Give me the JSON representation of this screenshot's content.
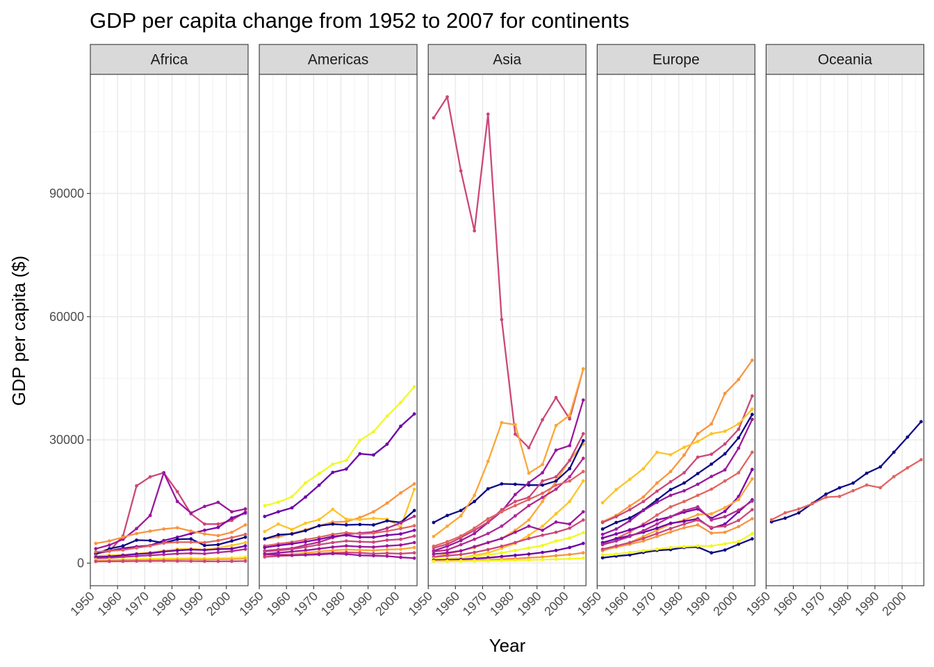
{
  "chart_data": {
    "type": "line",
    "title": "GDP per capita change from 1952 to 2007 for continents",
    "xlabel": "Year",
    "ylabel": "GDP per capita ($)",
    "x_ticks": [
      1950,
      1960,
      1970,
      1980,
      1990,
      2000
    ],
    "y_ticks": [
      0,
      30000,
      60000,
      90000
    ],
    "xlim": [
      1950,
      2008
    ],
    "ylim": [
      -5500,
      119000
    ],
    "grid": true,
    "legend": "none",
    "years": [
      1952,
      1957,
      1962,
      1967,
      1972,
      1977,
      1982,
      1987,
      1992,
      1997,
      2002,
      2007
    ],
    "facets": [
      {
        "name": "Africa",
        "series": [
          {
            "color": "#cc4778",
            "values": [
              2300,
              2900,
              6600,
              18800,
              21000,
              22000,
              17400,
              12000,
              9500,
              9500,
              10400,
              12500
            ]
          },
          {
            "color": "#9c179e",
            "values": [
              3500,
              4400,
              5800,
              8400,
              11600,
              22000,
              15000,
              12200,
              13800,
              14800,
              12500,
              13200
            ]
          },
          {
            "color": "#7e03a8",
            "values": [
              2400,
              3000,
              3600,
              4000,
              4300,
              5500,
              6300,
              7200,
              8000,
              8700,
              11000,
              12200
            ]
          },
          {
            "color": "#0d0887",
            "values": [
              2200,
              3500,
              4200,
              5600,
              5500,
              4900,
              5800,
              5900,
              4300,
              4500,
              5400,
              6300
            ]
          },
          {
            "color": "#f89540",
            "values": [
              4800,
              5400,
              6300,
              7200,
              7800,
              8300,
              8600,
              7800,
              7100,
              6700,
              7500,
              9300
            ]
          },
          {
            "color": "#e16462",
            "values": [
              2700,
              3000,
              3200,
              3700,
              4200,
              4900,
              5100,
              5100,
              5000,
              5500,
              6200,
              7000
            ]
          },
          {
            "color": "#fdc328",
            "values": [
              1700,
              1900,
              2000,
              2300,
              2600,
              3000,
              3400,
              3500,
              3300,
              3700,
              4300,
              5000
            ]
          },
          {
            "color": "#6a00a8",
            "values": [
              1500,
              1600,
              1900,
              2200,
              2400,
              2800,
              3100,
              3300,
              3200,
              3400,
              3500,
              4200
            ]
          },
          {
            "color": "#b12a90",
            "values": [
              1200,
              1300,
              1500,
              1700,
              1900,
              2100,
              2300,
              2400,
              2300,
              2600,
              2900,
              3400
            ]
          },
          {
            "color": "#f0f921",
            "values": [
              800,
              850,
              900,
              1000,
              1100,
              1150,
              1200,
              1250,
              1150,
              1200,
              1300,
              1500
            ]
          },
          {
            "color": "#fca636",
            "values": [
              600,
              650,
              700,
              750,
              800,
              850,
              900,
              950,
              900,
              950,
              1000,
              1100
            ]
          },
          {
            "color": "#cc4778",
            "values": [
              400,
              420,
              450,
              480,
              500,
              520,
              500,
              480,
              450,
              430,
              460,
              500
            ]
          }
        ]
      },
      {
        "name": "Americas",
        "series": [
          {
            "color": "#f0f921",
            "values": [
              13990,
              14850,
              16170,
              19530,
              21810,
              24070,
              25010,
              29880,
              32000,
              35770,
              39100,
              42950
            ]
          },
          {
            "color": "#6a00a8",
            "values": [
              11370,
              12490,
              13460,
              16080,
              18970,
              22090,
              22900,
              26630,
              26340,
              28950,
              33330,
              36320
            ]
          },
          {
            "color": "#f89540",
            "values": [
              5900,
              6400,
              7200,
              8100,
              9100,
              10000,
              10100,
              11100,
              12500,
              14600,
              17100,
              19300
            ]
          },
          {
            "color": "#fdc328",
            "values": [
              7700,
              9500,
              8200,
              9700,
              10600,
              13100,
              10700,
              10600,
              10900,
              10700,
              8800,
              18000
            ]
          },
          {
            "color": "#0d0887",
            "values": [
              5900,
              6900,
              7100,
              7900,
              9100,
              9500,
              9300,
              9400,
              9300,
              10300,
              9900,
              12800
            ]
          },
          {
            "color": "#b12a90",
            "values": [
              3000,
              3300,
              3600,
              4400,
              5100,
              6200,
              7000,
              7300,
              7600,
              8500,
              9800,
              11400
            ]
          },
          {
            "color": "#e16462",
            "values": [
              4200,
              4700,
              5100,
              5700,
              6300,
              7000,
              7400,
              7100,
              7300,
              7800,
              8400,
              9100
            ]
          },
          {
            "color": "#7e03a8",
            "values": [
              3800,
              4300,
              4700,
              5200,
              5800,
              6500,
              6800,
              6300,
              6300,
              6800,
              7100,
              8000
            ]
          },
          {
            "color": "#cc4778",
            "values": [
              2800,
              3100,
              3400,
              3900,
              4500,
              5000,
              5400,
              5200,
              5100,
              5600,
              5800,
              6600
            ]
          },
          {
            "color": "#9c179e",
            "values": [
              2200,
              2500,
              2800,
              3100,
              3500,
              3900,
              4200,
              4000,
              3900,
              4200,
              4400,
              5000
            ]
          },
          {
            "color": "#fca636",
            "values": [
              1800,
              2000,
              2200,
              2500,
              2800,
              3100,
              3300,
              3200,
              3100,
              3300,
              3400,
              3800
            ]
          },
          {
            "color": "#cc4778",
            "values": [
              1500,
              1700,
              1900,
              2100,
              2300,
              2500,
              2600,
              2500,
              2300,
              2400,
              2300,
              2500
            ]
          },
          {
            "color": "#9c179e",
            "values": [
              2200,
              2000,
              1900,
              2000,
              2100,
              2300,
              2200,
              1900,
              1800,
              1700,
              1400,
              1200
            ]
          }
        ]
      },
      {
        "name": "Asia",
        "series": [
          {
            "color": "#cc4778",
            "values": [
              108400,
              113500,
              95500,
              80900,
              109300,
              59300,
              31400,
              28100,
              34900,
              40300,
              35100,
              47300
            ]
          },
          {
            "color": "#fca636",
            "values": [
              1500,
              2200,
              3000,
              3800,
              5000,
              6000,
              8000,
              10500,
              15000,
              20000,
              25000,
              29000
            ]
          },
          {
            "color": "#0d0887",
            "values": [
              9900,
              11600,
              12800,
              15000,
              18100,
              19300,
              19200,
              19000,
              19000,
              20000,
              23000,
              29800
            ]
          },
          {
            "color": "#fca636",
            "values": [
              6500,
              9000,
              11500,
              16500,
              24800,
              34200,
              33700,
              21900,
              24000,
              33500,
              36000,
              47300
            ]
          },
          {
            "color": "#9c179e",
            "values": [
              3000,
              4100,
              5500,
              7200,
              9900,
              12600,
              16700,
              19600,
              22000,
              27500,
              28600,
              39700
            ]
          },
          {
            "color": "#cc4778",
            "values": [
              3700,
              4600,
              6200,
              8000,
              10000,
              13000,
              15000,
              16000,
              20000,
              21000,
              25000,
              31500
            ]
          },
          {
            "color": "#b12a90",
            "values": [
              2800,
              3200,
              4500,
              5800,
              7200,
              9000,
              11500,
              14000,
              16000,
              18000,
              21000,
              25500
            ]
          },
          {
            "color": "#e16462",
            "values": [
              4100,
              5200,
              6600,
              8500,
              10800,
              12500,
              14000,
              15500,
              17000,
              19000,
              20000,
              22300
            ]
          },
          {
            "color": "#fdc328",
            "values": [
              600,
              800,
              1200,
              1900,
              2500,
              3600,
              4800,
              6800,
              9000,
              12000,
              15000,
              20000
            ]
          },
          {
            "color": "#9c179e",
            "values": [
              2200,
              2500,
              3000,
              4000,
              5000,
              6000,
              7500,
              9000,
              8000,
              10000,
              9500,
              12500
            ]
          },
          {
            "color": "#cc4778",
            "values": [
              1500,
              1800,
              2100,
              2600,
              3300,
              4100,
              5000,
              6000,
              6800,
              7500,
              8500,
              10500
            ]
          },
          {
            "color": "#f0f921",
            "values": [
              1000,
              1100,
              1300,
              1600,
              2000,
              2500,
              3100,
              3700,
              4300,
              5400,
              6100,
              7400
            ]
          },
          {
            "color": "#6a00a8",
            "values": [
              700,
              800,
              900,
              1100,
              1300,
              1600,
              1900,
              2200,
              2600,
              3100,
              3800,
              4800
            ]
          },
          {
            "color": "#f89540",
            "values": [
              500,
              550,
              600,
              700,
              800,
              950,
              1100,
              1300,
              1500,
              1800,
              2100,
              2500
            ]
          },
          {
            "color": "#f0f921",
            "values": [
              400,
              420,
              450,
              500,
              560,
              620,
              700,
              780,
              860,
              950,
              1050,
              1200
            ]
          }
        ]
      },
      {
        "name": "Europe",
        "series": [
          {
            "color": "#f89540",
            "values": [
              10100,
              11600,
              13900,
              16100,
              19500,
              22300,
              26300,
              31500,
              33900,
              41300,
              44700,
              49400
            ]
          },
          {
            "color": "#cc4778",
            "values": [
              9900,
              11300,
              13000,
              15000,
              17500,
              19800,
              22000,
              25800,
              26500,
              29000,
              32600,
              40700
            ]
          },
          {
            "color": "#fdc328",
            "values": [
              14700,
              17900,
              20400,
              23000,
              27000,
              26400,
              28200,
              29600,
              31500,
              32100,
              33900,
              37500
            ]
          },
          {
            "color": "#0d0887",
            "values": [
              8300,
              9900,
              11000,
              12900,
              15400,
              17900,
              19500,
              21800,
              24100,
              26600,
              30500,
              36200
            ]
          },
          {
            "color": "#9c179e",
            "values": [
              7000,
              8300,
              10300,
              12800,
              14800,
              16500,
              17600,
              19200,
              21100,
              22700,
              28000,
              35000
            ]
          },
          {
            "color": "#e16462",
            "values": [
              4800,
              6000,
              7600,
              9500,
              11700,
              13700,
              15000,
              16500,
              18000,
              20000,
              22000,
              27000
            ]
          },
          {
            "color": "#7e03a8",
            "values": [
              6100,
              7100,
              8100,
              9100,
              10500,
              11300,
              12400,
              13200,
              10900,
              12600,
              16200,
              22800
            ]
          },
          {
            "color": "#fca636",
            "values": [
              3000,
              4000,
              5000,
              6500,
              8000,
              9500,
              10500,
              11800,
              12000,
              13500,
              15500,
              20500
            ]
          },
          {
            "color": "#6a00a8",
            "values": [
              5000,
              5900,
              6700,
              7500,
              8500,
              9700,
              10200,
              10800,
              8500,
              9500,
              12500,
              15400
            ]
          },
          {
            "color": "#f89540",
            "values": [
              3100,
              3900,
              4600,
              5400,
              6500,
              7600,
              8600,
              9300,
              7300,
              7500,
              8900,
              10800
            ]
          },
          {
            "color": "#0d0887",
            "values": [
              1300,
              1700,
              2000,
              2600,
              3100,
              3300,
              3800,
              3900,
              2500,
              3200,
              4600,
              5900
            ]
          },
          {
            "color": "#f0f921",
            "values": [
              2000,
              2200,
              2600,
              3000,
              3400,
              3800,
              4000,
              4200,
              4200,
              4700,
              5300,
              7200
            ]
          },
          {
            "color": "#b12a90",
            "values": [
              4500,
              5400,
              6500,
              7900,
              9500,
              11300,
              12800,
              13700,
              10500,
              11300,
              12900,
              15100
            ]
          },
          {
            "color": "#cc4778",
            "values": [
              3400,
              4200,
              5000,
              6000,
              7200,
              8400,
              9500,
              10500,
              8700,
              9000,
              10400,
              13000
            ]
          }
        ]
      },
      {
        "name": "Oceania",
        "series": [
          {
            "color": "#0d0887",
            "values": [
              10040,
              10950,
              12220,
              14530,
              16790,
              18330,
              19480,
              21890,
              23420,
              26990,
              30690,
              34440
            ]
          },
          {
            "color": "#e16462",
            "values": [
              10560,
              12250,
              13180,
              14460,
              16050,
              16230,
              17630,
              19010,
              18360,
              21050,
              23190,
              25190
            ]
          }
        ]
      }
    ]
  }
}
